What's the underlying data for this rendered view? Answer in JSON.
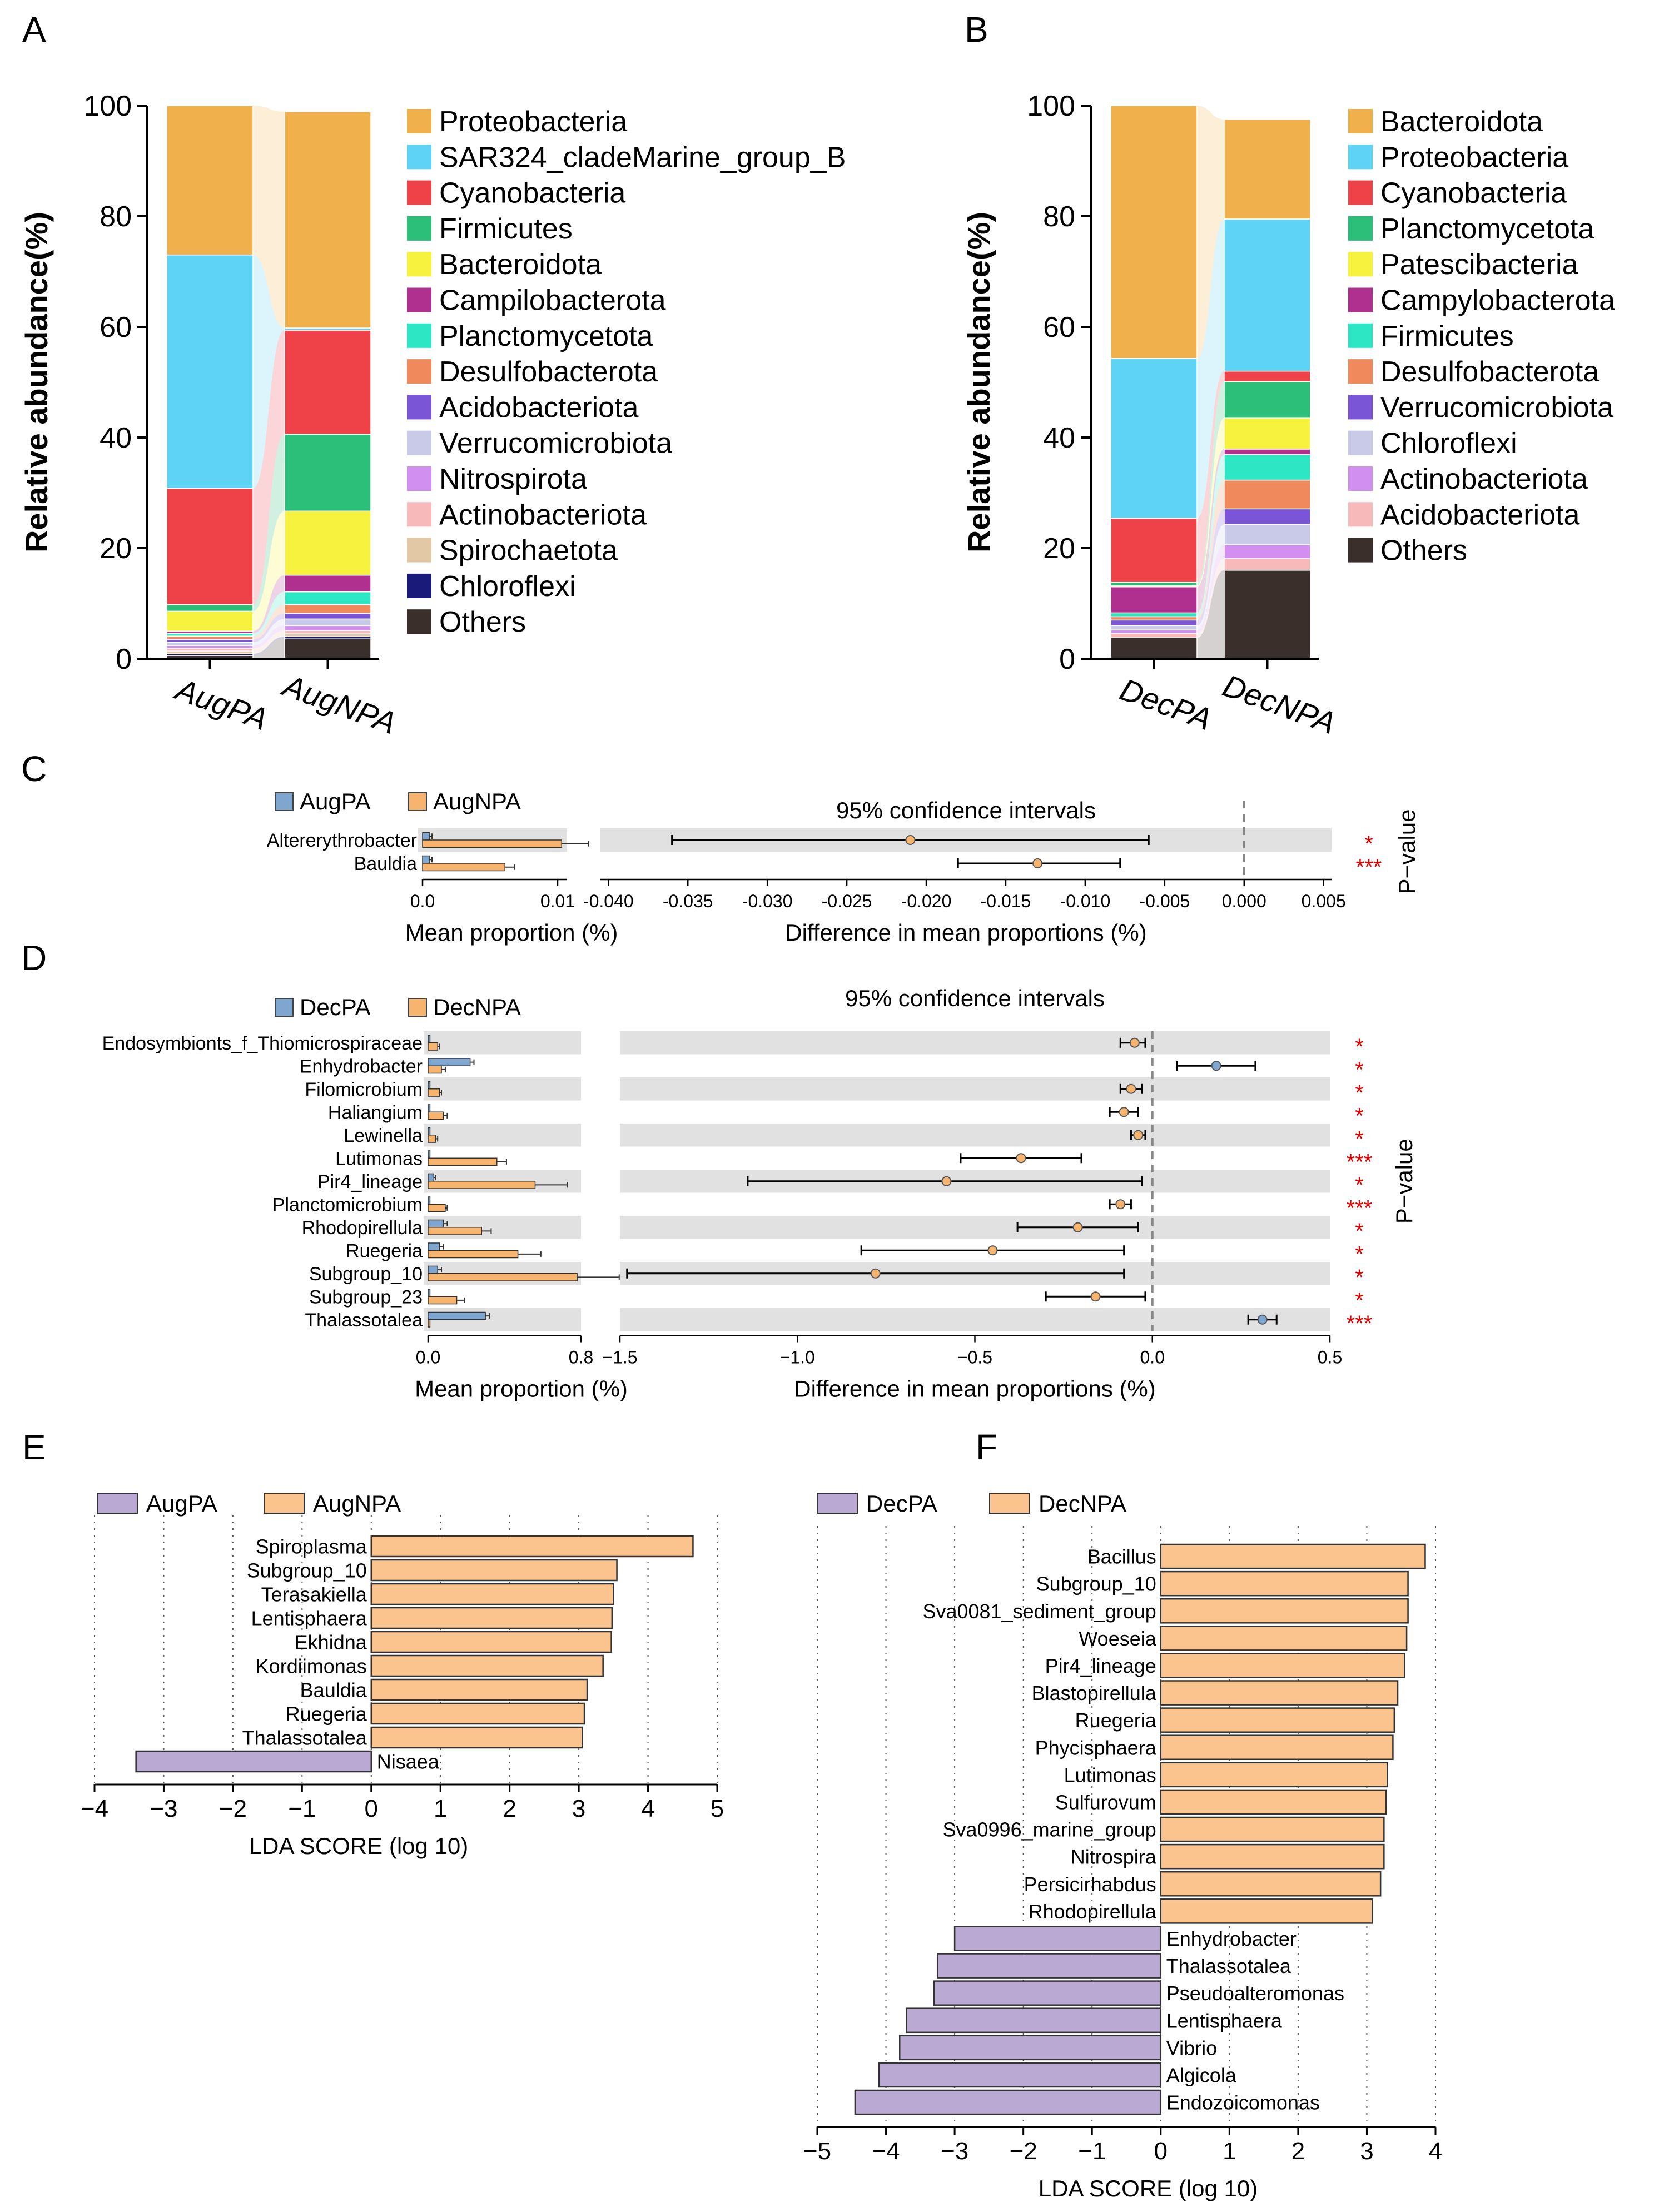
{
  "chart_data": [
    {
      "panel": "A",
      "type": "bar",
      "stacked": true,
      "ylabel": "Relative abundance(%)",
      "ylim": [
        0,
        100
      ],
      "yticks": [
        "0",
        "20",
        "40",
        "60",
        "80",
        "100"
      ],
      "categories": [
        "AugPA",
        "AugNPA"
      ],
      "series": [
        {
          "name": "Others",
          "color": "#3a2f2b",
          "values": [
            0.6,
            3.6
          ]
        },
        {
          "name": "Chloroflexi",
          "color": "#1a1a7a",
          "values": [
            0.3,
            0.4
          ]
        },
        {
          "name": "Spirochaetota",
          "color": "#e3c8a6",
          "values": [
            0.5,
            0.5
          ]
        },
        {
          "name": "Actinobacteriota",
          "color": "#f7b9b9",
          "values": [
            0.5,
            0.6
          ]
        },
        {
          "name": "Nitrospirota",
          "color": "#d190f0",
          "values": [
            0.5,
            0.9
          ]
        },
        {
          "name": "Verrucomicrobiota",
          "color": "#c9c9e8",
          "values": [
            0.6,
            1.2
          ]
        },
        {
          "name": "Acidobacteriota",
          "color": "#7a55d6",
          "values": [
            0.5,
            1.0
          ]
        },
        {
          "name": "Desulfobacterota",
          "color": "#f08a5d",
          "values": [
            0.6,
            1.6
          ]
        },
        {
          "name": "Planctomycetota",
          "color": "#2de6c4",
          "values": [
            0.5,
            2.3
          ]
        },
        {
          "name": "Campilobacterota",
          "color": "#b0308f",
          "values": [
            0.4,
            3.0
          ]
        },
        {
          "name": "Bacteroidota",
          "color": "#f7f23e",
          "values": [
            3.6,
            11.6
          ]
        },
        {
          "name": "Firmicutes",
          "color": "#2bbf7a",
          "values": [
            1.2,
            13.9
          ]
        },
        {
          "name": "Cyanobacteria",
          "color": "#ee4148",
          "values": [
            21.0,
            18.8
          ]
        },
        {
          "name": "SAR324_cladeMarine_group_B",
          "color": "#5fd3f5",
          "values": [
            42.2,
            0.4
          ]
        },
        {
          "name": "Proteobacteria",
          "color": "#f0b04b",
          "values": [
            27.0,
            39.1
          ]
        }
      ],
      "legend": [
        "Proteobacteria",
        "SAR324_cladeMarine_group_B",
        "Cyanobacteria",
        "Firmicutes",
        "Bacteroidota",
        "Campilobacterota",
        "Planctomycetota",
        "Desulfobacterota",
        "Acidobacteriota",
        "Verrucomicrobiota",
        "Nitrospirota",
        "Actinobacteriota",
        "Spirochaetota",
        "Chloroflexi",
        "Others"
      ]
    },
    {
      "panel": "B",
      "type": "bar",
      "stacked": true,
      "ylabel": "Relative abundance(%)",
      "ylim": [
        0,
        100
      ],
      "yticks": [
        "0",
        "20",
        "40",
        "60",
        "80",
        "100"
      ],
      "categories": [
        "DecPA",
        "DecNPA"
      ],
      "series": [
        {
          "name": "Others",
          "color": "#3a2f2b",
          "values": [
            3.8,
            16.0
          ]
        },
        {
          "name": "Acidobacteriota",
          "color": "#f7b9b9",
          "values": [
            0.8,
            2.1
          ]
        },
        {
          "name": "Actinobacteriota",
          "color": "#d190f0",
          "values": [
            0.6,
            2.5
          ]
        },
        {
          "name": "Chloroflexi",
          "color": "#c9c9e8",
          "values": [
            0.8,
            3.7
          ]
        },
        {
          "name": "Verrucomicrobiota",
          "color": "#7a55d6",
          "values": [
            1.0,
            2.8
          ]
        },
        {
          "name": "Desulfobacterota",
          "color": "#f08a5d",
          "values": [
            0.6,
            5.2
          ]
        },
        {
          "name": "Firmicutes",
          "color": "#2de6c4",
          "values": [
            0.7,
            4.6
          ]
        },
        {
          "name": "Campylobacterota",
          "color": "#b0308f",
          "values": [
            4.7,
            1.0
          ]
        },
        {
          "name": "Patescibacteria",
          "color": "#f7f23e",
          "values": [
            0.2,
            5.6
          ]
        },
        {
          "name": "Planctomycetota",
          "color": "#2bbf7a",
          "values": [
            0.6,
            6.6
          ]
        },
        {
          "name": "Cyanobacteria",
          "color": "#ee4148",
          "values": [
            11.6,
            1.9
          ]
        },
        {
          "name": "Proteobacteria",
          "color": "#5fd3f5",
          "values": [
            28.9,
            27.5
          ]
        },
        {
          "name": "Bacteroidota",
          "color": "#f0b04b",
          "values": [
            45.7,
            18.0
          ]
        }
      ],
      "legend": [
        "Bacteroidota",
        "Proteobacteria",
        "Cyanobacteria",
        "Planctomycetota",
        "Patescibacteria",
        "Campylobacterota",
        "Firmicutes",
        "Desulfobacterota",
        "Verrucomicrobiota",
        "Chloroflexi",
        "Actinobacteriota",
        "Acidobacteriota",
        "Others"
      ]
    },
    {
      "panel": "C",
      "type": "bar",
      "subtype": "extended error bar",
      "legend": [
        {
          "name": "AugPA",
          "color": "#7ea6cf"
        },
        {
          "name": "AugNPA",
          "color": "#f6b46f"
        }
      ],
      "categories": [
        "Altererythrobacter",
        "Bauldia"
      ],
      "mean_proportion": {
        "AugPA": [
          0.0005,
          0.0005
        ],
        "AugNPA": [
          0.0103,
          0.0061
        ]
      },
      "mean_error": {
        "AugPA": [
          0.0002,
          0.0002
        ],
        "AugNPA": [
          0.002,
          0.0007
        ]
      },
      "mean_xlim": [
        0,
        0.0107
      ],
      "mean_ticks": [
        "0.0",
        "0.01"
      ],
      "diff": [
        -0.021,
        -0.013
      ],
      "ci_low": [
        -0.036,
        -0.018
      ],
      "ci_high": [
        -0.006,
        -0.0078
      ],
      "diff_xlim": [
        -0.0405,
        0.0055
      ],
      "diff_ticks": [
        "-0.040",
        "-0.035",
        "-0.030",
        "-0.025",
        "-0.020",
        "-0.015",
        "-0.010",
        "-0.005",
        "0.000",
        "0.005"
      ],
      "pvalue_stars": [
        "*",
        "***"
      ],
      "ci_title": "95% confidence intervals",
      "xlabel_left": "Mean proportion (%)",
      "xlabel_right": "Difference in mean proportions (%)",
      "pvalue_label": "P−value"
    },
    {
      "panel": "D",
      "type": "bar",
      "subtype": "extended error bar",
      "legend": [
        {
          "name": "DecPA",
          "color": "#7ea6cf"
        },
        {
          "name": "DecNPA",
          "color": "#f6b46f"
        }
      ],
      "categories": [
        "Endosymbionts_f_Thiomicrospiraceae",
        "Enhydrobacter",
        "Filomicrobium",
        "Haliangium",
        "Lewinella",
        "Lutimonas",
        "Pir4_lineage",
        "Planctomicrobium",
        "Rhodopirellula",
        "Ruegeria",
        "Subgroup_10",
        "Subgroup_23",
        "Thalassotalea"
      ],
      "mean_proportion": {
        "DecPA": [
          0.01,
          0.22,
          0.01,
          0.01,
          0.01,
          0.01,
          0.03,
          0.01,
          0.08,
          0.06,
          0.05,
          0.01,
          0.3
        ],
        "DecNPA": [
          0.05,
          0.07,
          0.06,
          0.08,
          0.04,
          0.36,
          0.56,
          0.09,
          0.28,
          0.47,
          0.78,
          0.15,
          0.01
        ]
      },
      "mean_error": {
        "DecPA": [
          0.0,
          0.02,
          0.0,
          0.0,
          0.0,
          0.0,
          0.01,
          0.0,
          0.02,
          0.02,
          0.02,
          0.0,
          0.02
        ],
        "DecNPA": [
          0.01,
          0.02,
          0.01,
          0.02,
          0.01,
          0.05,
          0.17,
          0.01,
          0.05,
          0.12,
          0.22,
          0.04,
          0.0
        ]
      },
      "mean_xlim": [
        0,
        0.8
      ],
      "mean_ticks": [
        "0.0",
        "0.8"
      ],
      "diff": [
        -0.05,
        0.18,
        -0.06,
        -0.08,
        -0.04,
        -0.37,
        -0.58,
        -0.09,
        -0.21,
        -0.45,
        -0.78,
        -0.16,
        0.31
      ],
      "ci_low": [
        -0.09,
        0.07,
        -0.09,
        -0.12,
        -0.06,
        -0.54,
        -1.14,
        -0.12,
        -0.38,
        -0.82,
        -1.48,
        -0.3,
        0.27
      ],
      "ci_high": [
        -0.02,
        0.29,
        -0.03,
        -0.04,
        -0.02,
        -0.2,
        -0.03,
        -0.06,
        -0.04,
        -0.08,
        -0.08,
        -0.02,
        0.35
      ],
      "diff_xlim": [
        -1.5,
        0.5
      ],
      "diff_ticks": [
        "−1.5",
        "−1.0",
        "−0.5",
        "0.0",
        "0.5"
      ],
      "pvalue_stars": [
        "*",
        "*",
        "*",
        "*",
        "*",
        "***",
        "*",
        "***",
        "*",
        "*",
        "*",
        "*",
        "***"
      ],
      "ci_title": "95% confidence intervals",
      "xlabel_left": "Mean proportion (%)",
      "xlabel_right": "Difference in mean proportions (%)",
      "pvalue_label": "P−value"
    },
    {
      "panel": "E",
      "type": "bar",
      "orientation": "horizontal",
      "legend": [
        {
          "name": "AugPA",
          "color": "#b9a9d3"
        },
        {
          "name": "AugNPA",
          "color": "#fbc38d"
        }
      ],
      "categories": [
        "Spiroplasma",
        "Subgroup_10",
        "Terasakiella",
        "Lentisphaera",
        "Ekhidna",
        "Kordiimonas",
        "Bauldia",
        "Ruegeria",
        "Thalassotalea",
        "Nisaea"
      ],
      "values": [
        4.65,
        3.55,
        3.5,
        3.48,
        3.47,
        3.35,
        3.12,
        3.08,
        3.05,
        -3.4
      ],
      "groups": [
        "AugNPA",
        "AugNPA",
        "AugNPA",
        "AugNPA",
        "AugNPA",
        "AugNPA",
        "AugNPA",
        "AugNPA",
        "AugNPA",
        "AugPA"
      ],
      "xlim": [
        -4,
        5
      ],
      "xticks": [
        "−4",
        "−3",
        "−2",
        "−1",
        "0",
        "1",
        "2",
        "3",
        "4",
        "5"
      ],
      "xlabel": "LDA SCORE (log 10)"
    },
    {
      "panel": "F",
      "type": "bar",
      "orientation": "horizontal",
      "legend": [
        {
          "name": "DecPA",
          "color": "#b9a9d3"
        },
        {
          "name": "DecNPA",
          "color": "#fbc38d"
        }
      ],
      "categories": [
        "Bacillus",
        "Subgroup_10",
        "Sva0081_sediment_group",
        "Woeseia",
        "Pir4_lineage",
        "Blastopirellula",
        "Ruegeria",
        "Phycisphaera",
        "Lutimonas",
        "Sulfurovum",
        "Sva0996_marine_group",
        "Nitrospira",
        "Persicirhabdus",
        "Rhodopirellula",
        "Enhydrobacter",
        "Thalassotalea",
        "Pseudoalteromonas",
        "Lentisphaera",
        "Vibrio",
        "Algicola",
        "Endozoicomonas"
      ],
      "values": [
        3.85,
        3.6,
        3.6,
        3.58,
        3.55,
        3.45,
        3.4,
        3.38,
        3.3,
        3.28,
        3.25,
        3.25,
        3.2,
        3.08,
        -3.0,
        -3.25,
        -3.3,
        -3.7,
        -3.8,
        -4.1,
        -4.45
      ],
      "groups": [
        "DecNPA",
        "DecNPA",
        "DecNPA",
        "DecNPA",
        "DecNPA",
        "DecNPA",
        "DecNPA",
        "DecNPA",
        "DecNPA",
        "DecNPA",
        "DecNPA",
        "DecNPA",
        "DecNPA",
        "DecNPA",
        "DecPA",
        "DecPA",
        "DecPA",
        "DecPA",
        "DecPA",
        "DecPA",
        "DecPA"
      ],
      "xlim": [
        -5,
        4
      ],
      "xticks": [
        "−5",
        "−4",
        "−3",
        "−2",
        "−1",
        "0",
        "1",
        "2",
        "3",
        "4"
      ],
      "xlabel": "LDA SCORE (log 10)"
    }
  ]
}
